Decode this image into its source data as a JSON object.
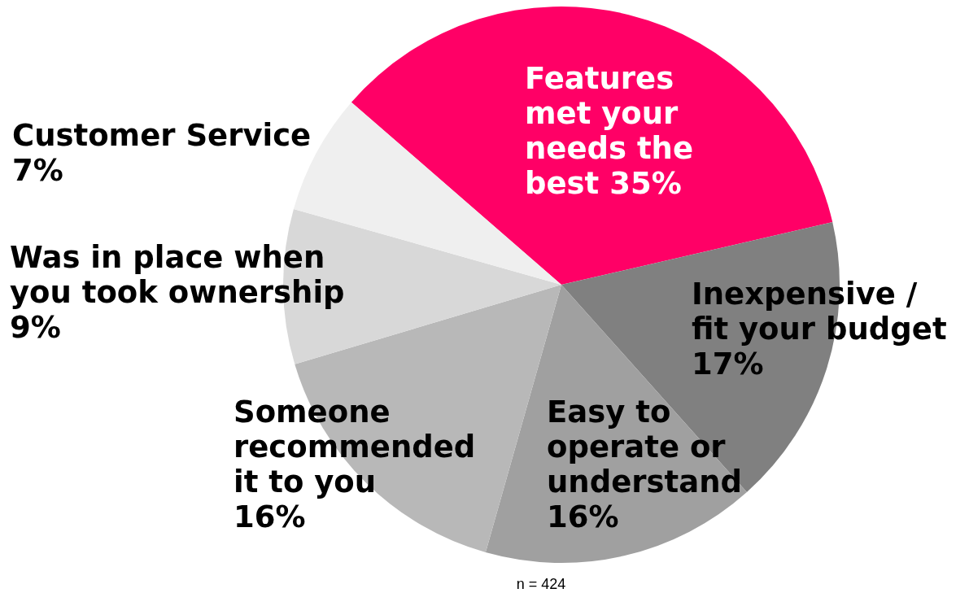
{
  "chart_data": {
    "type": "pie",
    "categories": [
      "Features met your needs the best",
      "Inexpensive / fit your budget",
      "Easy to operate or understand",
      "Someone recommended it to you",
      "Was in place when you took ownership",
      "Customer Service"
    ],
    "values": [
      35,
      17,
      16,
      16,
      9,
      7
    ],
    "value_labels": [
      "35%",
      "17%",
      "16%",
      "16%",
      "9%",
      "7%"
    ],
    "colors": [
      "#ff0066",
      "#808080",
      "#a0a0a0",
      "#b8b8b8",
      "#d8d8d8",
      "#efefef"
    ],
    "annotations": [
      "n = 424"
    ]
  }
}
